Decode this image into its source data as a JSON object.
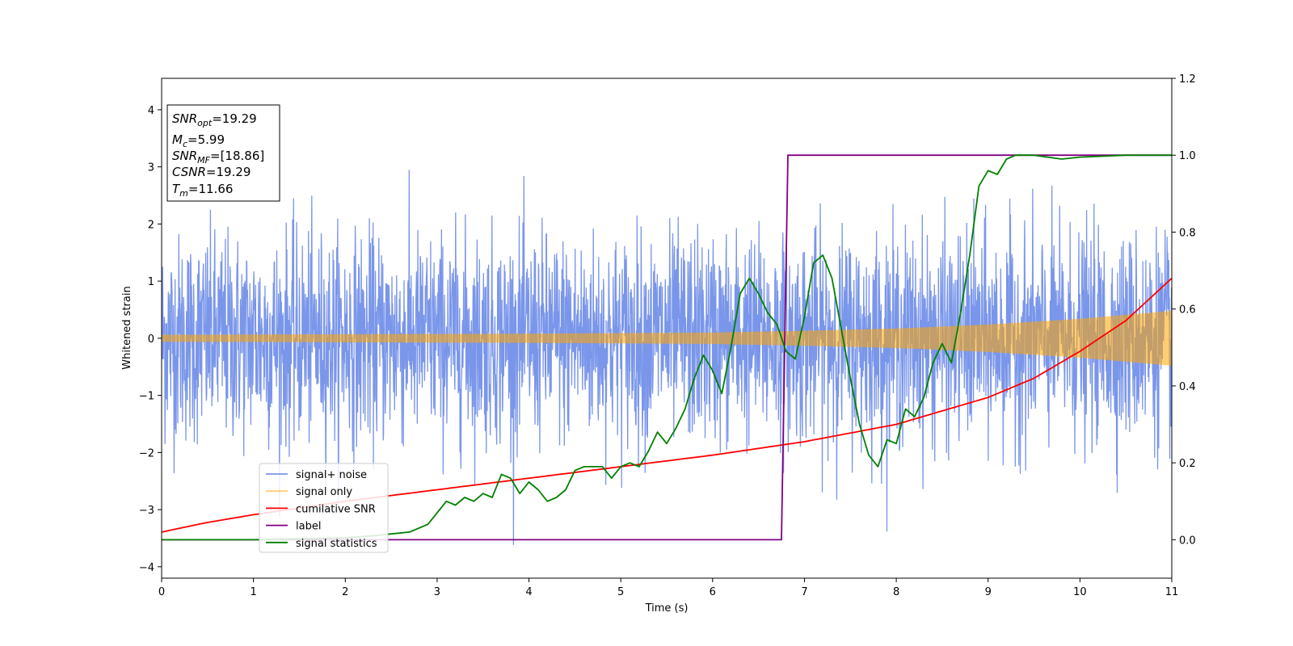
{
  "chart_data": {
    "type": "line",
    "title": "",
    "xlabel": "Time (s)",
    "ylabel": "Whitened strain",
    "xlim": [
      0,
      11
    ],
    "ylim": [
      -4.2,
      4.55
    ],
    "y2lim": [
      -0.1,
      1.2
    ],
    "x_ticks": [
      "0",
      "1",
      "2",
      "3",
      "4",
      "5",
      "6",
      "7",
      "8",
      "9",
      "10",
      "11"
    ],
    "y_ticks": [
      "−4",
      "−3",
      "−2",
      "−1",
      "0",
      "1",
      "2",
      "3",
      "4"
    ],
    "y2_ticks": [
      "0.0",
      "0.2",
      "0.4",
      "0.6",
      "0.8",
      "1.0",
      "1.2"
    ],
    "grid": false,
    "legend_position": "lower-left",
    "annotation": {
      "snr_opt": {
        "sym": "SNR",
        "sub": "opt",
        "val": "=19.29"
      },
      "mc": {
        "sym": "M",
        "sub": "c",
        "val": "=5.99"
      },
      "snr_mf": {
        "sym": "SNR",
        "sub": "MF",
        "val": "=[18.86]"
      },
      "csnr": {
        "sym": "CSNR",
        "sub": "",
        "val": "=19.29"
      },
      "tm": {
        "sym": "T",
        "sub": "m",
        "val": "=11.66"
      }
    },
    "series": [
      {
        "name": "signal+ noise",
        "color": "#4169e1",
        "axis": "left",
        "kind": "noise",
        "sigma": 0.9
      },
      {
        "name": "signal only",
        "color": "#ffa500",
        "axis": "left",
        "kind": "chirp",
        "envelope": {
          "x": [
            0,
            2,
            4,
            6,
            7,
            8,
            9,
            10,
            11
          ],
          "y": [
            0.06,
            0.07,
            0.08,
            0.1,
            0.13,
            0.17,
            0.24,
            0.34,
            0.48
          ]
        }
      },
      {
        "name": "cumilative SNR",
        "color": "#ff0000",
        "axis": "right",
        "x": [
          0,
          0.5,
          1,
          2,
          3,
          4,
          5,
          6,
          7,
          8,
          9,
          9.5,
          10,
          10.5,
          11
        ],
        "y": [
          0.02,
          0.045,
          0.065,
          0.1,
          0.13,
          0.16,
          0.19,
          0.22,
          0.255,
          0.3,
          0.37,
          0.42,
          0.49,
          0.57,
          0.68
        ]
      },
      {
        "name": "label",
        "color": "#800080",
        "axis": "right",
        "x": [
          0,
          6.75,
          6.82,
          11
        ],
        "y": [
          0,
          0,
          1,
          1
        ]
      },
      {
        "name": "signal statistics",
        "color": "#008000",
        "axis": "right",
        "x": [
          0,
          0.5,
          1,
          2,
          2.3,
          2.5,
          2.7,
          2.9,
          3.0,
          3.1,
          3.2,
          3.3,
          3.4,
          3.5,
          3.6,
          3.7,
          3.8,
          3.9,
          4.0,
          4.1,
          4.2,
          4.3,
          4.4,
          4.5,
          4.6,
          4.7,
          4.8,
          4.9,
          5.0,
          5.1,
          5.2,
          5.3,
          5.4,
          5.5,
          5.6,
          5.7,
          5.8,
          5.9,
          6.0,
          6.1,
          6.2,
          6.3,
          6.4,
          6.5,
          6.6,
          6.7,
          6.8,
          6.9,
          7.0,
          7.1,
          7.2,
          7.3,
          7.4,
          7.5,
          7.6,
          7.7,
          7.8,
          7.9,
          8.0,
          8.1,
          8.2,
          8.3,
          8.4,
          8.5,
          8.6,
          8.7,
          8.8,
          8.9,
          9.0,
          9.1,
          9.2,
          9.3,
          9.5,
          9.8,
          10.0,
          10.5,
          11.0
        ],
        "y": [
          0,
          0,
          0,
          0.005,
          0.01,
          0.015,
          0.02,
          0.04,
          0.07,
          0.1,
          0.09,
          0.11,
          0.1,
          0.12,
          0.11,
          0.17,
          0.16,
          0.12,
          0.15,
          0.13,
          0.1,
          0.11,
          0.13,
          0.18,
          0.19,
          0.19,
          0.19,
          0.16,
          0.19,
          0.2,
          0.19,
          0.23,
          0.28,
          0.25,
          0.29,
          0.34,
          0.42,
          0.48,
          0.44,
          0.38,
          0.5,
          0.64,
          0.68,
          0.64,
          0.59,
          0.56,
          0.49,
          0.47,
          0.58,
          0.72,
          0.74,
          0.68,
          0.55,
          0.42,
          0.3,
          0.22,
          0.19,
          0.26,
          0.25,
          0.34,
          0.32,
          0.37,
          0.46,
          0.51,
          0.46,
          0.59,
          0.74,
          0.92,
          0.96,
          0.95,
          0.99,
          1.0,
          1.0,
          0.99,
          0.995,
          1.0,
          1.0
        ]
      }
    ]
  }
}
